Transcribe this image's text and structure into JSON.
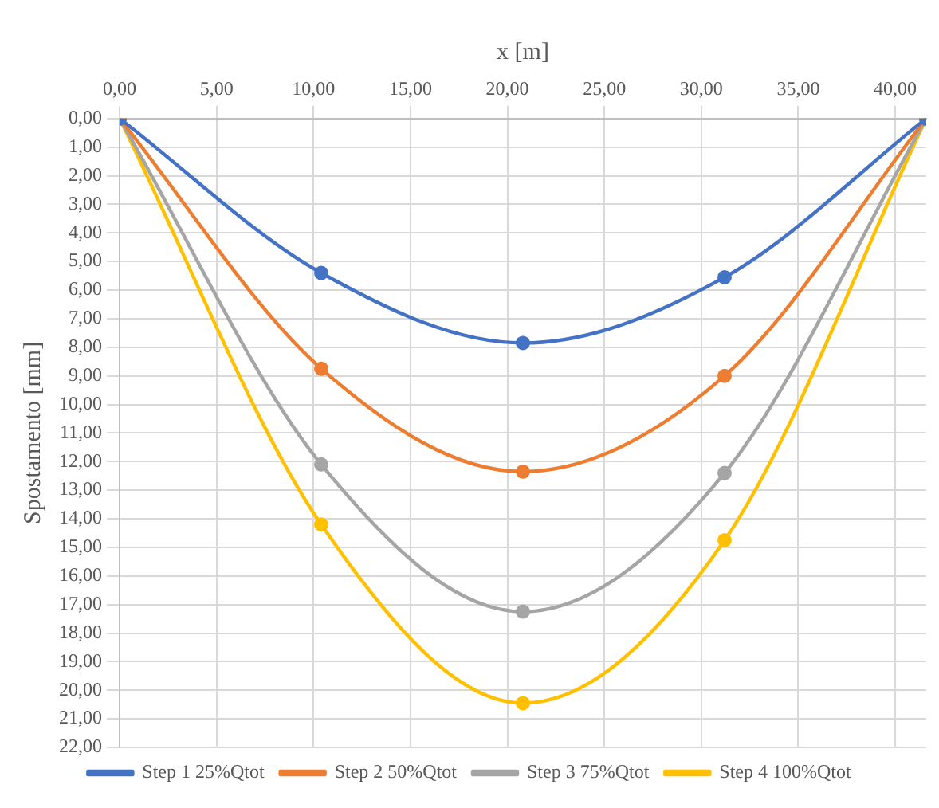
{
  "chart_data": {
    "type": "line",
    "xlabel": "x [m]",
    "ylabel": "Spostamento [mm]",
    "x": [
      0,
      10.4,
      20.8,
      31.2,
      41.6
    ],
    "series": [
      {
        "name": "Step 1 25%Qtot",
        "color": "#4472c4",
        "values": [
          0,
          5.4,
          7.85,
          5.55,
          0
        ]
      },
      {
        "name": "Step 2 50%Qtot",
        "color": "#ed7d31",
        "values": [
          0,
          8.75,
          12.35,
          9.0,
          0
        ]
      },
      {
        "name": "Step 3 75%Qtot",
        "color": "#a5a5a5",
        "values": [
          0,
          12.1,
          17.25,
          12.4,
          0
        ]
      },
      {
        "name": "Step 4 100%Qtot",
        "color": "#ffc000",
        "values": [
          0,
          14.2,
          20.45,
          14.75,
          0
        ]
      }
    ],
    "xlim": [
      0,
      41.6
    ],
    "xticks": [
      {
        "value": 0,
        "label": "0,00"
      },
      {
        "value": 5,
        "label": "5,00"
      },
      {
        "value": 10,
        "label": "10,00"
      },
      {
        "value": 15,
        "label": "15,00"
      },
      {
        "value": 20,
        "label": "20,00"
      },
      {
        "value": 25,
        "label": "25,00"
      },
      {
        "value": 30,
        "label": "30,00"
      },
      {
        "value": 35,
        "label": "35,00"
      },
      {
        "value": 40,
        "label": "40,00"
      }
    ],
    "ylim": [
      22,
      0
    ],
    "yticks": [
      {
        "value": 0,
        "label": "0,00"
      },
      {
        "value": 1,
        "label": "1,00"
      },
      {
        "value": 2,
        "label": "2,00"
      },
      {
        "value": 3,
        "label": "3,00"
      },
      {
        "value": 4,
        "label": "4,00"
      },
      {
        "value": 5,
        "label": "5,00"
      },
      {
        "value": 6,
        "label": "6,00"
      },
      {
        "value": 7,
        "label": "7,00"
      },
      {
        "value": 8,
        "label": "8,00"
      },
      {
        "value": 9,
        "label": "9,00"
      },
      {
        "value": 10,
        "label": "10,00"
      },
      {
        "value": 11,
        "label": "11,00"
      },
      {
        "value": 12,
        "label": "12,00"
      },
      {
        "value": 13,
        "label": "13,00"
      },
      {
        "value": 14,
        "label": "14,00"
      },
      {
        "value": 15,
        "label": "15,00"
      },
      {
        "value": 16,
        "label": "16,00"
      },
      {
        "value": 17,
        "label": "17,00"
      },
      {
        "value": 18,
        "label": "18,00"
      },
      {
        "value": 19,
        "label": "19,00"
      },
      {
        "value": 20,
        "label": "20,00"
      },
      {
        "value": 21,
        "label": "21,00"
      },
      {
        "value": 22,
        "label": "22,00"
      }
    ],
    "grid": true,
    "legend": "bottom",
    "marker": "circle",
    "line_style": "solid"
  }
}
